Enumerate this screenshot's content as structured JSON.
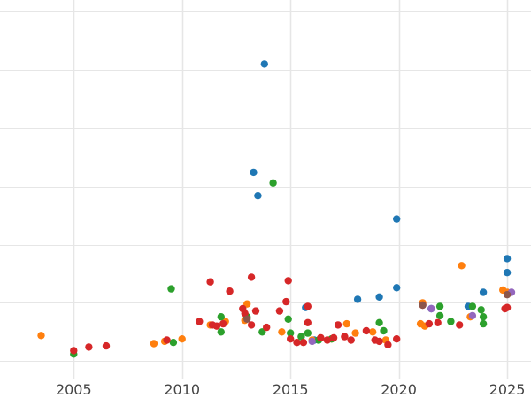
{
  "chart_data": {
    "type": "scatter",
    "title": "",
    "xlabel": "",
    "ylabel": "",
    "xlim": [
      2001.6,
      2026.1
    ],
    "ylim": [
      -1.5,
      31
    ],
    "x_ticks": [
      2005,
      2010,
      2015,
      2020,
      2025
    ],
    "x_tick_labels": [
      "2005",
      "2010",
      "2015",
      "2020",
      "2025"
    ],
    "y_grid": [
      0,
      5,
      10,
      15,
      20,
      25,
      30
    ],
    "grid": true,
    "legend": "none",
    "colors": {
      "blue": "#1f77b4",
      "orange": "#ff7f0e",
      "green": "#2ca02c",
      "red": "#d62728",
      "purple": "#9467bd",
      "brown": "#8c564b"
    },
    "series": [
      {
        "color": "#1f77b4",
        "points": [
          [
            2013.8,
            25.5
          ],
          [
            2013.3,
            16.2
          ],
          [
            2013.5,
            14.2
          ],
          [
            2019.9,
            12.2
          ],
          [
            2025.0,
            8.8
          ],
          [
            2025.0,
            7.6
          ],
          [
            2019.9,
            6.3
          ],
          [
            2023.9,
            5.9
          ],
          [
            2018.1,
            5.3
          ],
          [
            2019.1,
            5.5
          ],
          [
            2023.2,
            4.7
          ],
          [
            2015.7,
            4.6
          ],
          [
            2016.1,
            1.8
          ],
          [
            2021.5,
            4.5
          ]
        ]
      },
      {
        "color": "#ff7f0e",
        "points": [
          [
            2003.5,
            2.2
          ],
          [
            2008.7,
            1.5
          ],
          [
            2009.2,
            1.7
          ],
          [
            2010.0,
            1.9
          ],
          [
            2011.3,
            3.1
          ],
          [
            2012.0,
            3.4
          ],
          [
            2013.0,
            4.9
          ],
          [
            2012.9,
            3.5
          ],
          [
            2014.6,
            2.5
          ],
          [
            2016.0,
            1.8
          ],
          [
            2016.9,
            1.9
          ],
          [
            2017.6,
            3.2
          ],
          [
            2018.0,
            2.4
          ],
          [
            2018.8,
            2.5
          ],
          [
            2019.4,
            1.8
          ],
          [
            2021.0,
            3.2
          ],
          [
            2021.2,
            3.0
          ],
          [
            2021.1,
            5.0
          ],
          [
            2022.9,
            8.2
          ],
          [
            2023.3,
            3.8
          ],
          [
            2024.8,
            6.1
          ],
          [
            2025.0,
            5.9
          ]
        ]
      },
      {
        "color": "#2ca02c",
        "points": [
          [
            2005.0,
            0.6
          ],
          [
            2009.5,
            6.2
          ],
          [
            2009.6,
            1.6
          ],
          [
            2011.8,
            3.8
          ],
          [
            2011.8,
            2.5
          ],
          [
            2013.0,
            3.8
          ],
          [
            2013.7,
            2.5
          ],
          [
            2014.2,
            15.3
          ],
          [
            2014.9,
            3.6
          ],
          [
            2015.0,
            2.4
          ],
          [
            2015.5,
            2.1
          ],
          [
            2015.8,
            2.4
          ],
          [
            2016.3,
            1.8
          ],
          [
            2016.9,
            1.9
          ],
          [
            2019.1,
            3.3
          ],
          [
            2019.3,
            2.6
          ],
          [
            2021.9,
            4.7
          ],
          [
            2021.9,
            3.9
          ],
          [
            2022.4,
            3.4
          ],
          [
            2023.4,
            4.7
          ],
          [
            2023.8,
            4.4
          ],
          [
            2023.9,
            3.2
          ],
          [
            2023.9,
            3.8
          ]
        ]
      },
      {
        "color": "#d62728",
        "points": [
          [
            2005.0,
            0.9
          ],
          [
            2005.7,
            1.2
          ],
          [
            2006.5,
            1.3
          ],
          [
            2009.3,
            1.8
          ],
          [
            2010.8,
            3.4
          ],
          [
            2011.3,
            6.8
          ],
          [
            2011.4,
            3.1
          ],
          [
            2011.6,
            3.0
          ],
          [
            2011.9,
            3.2
          ],
          [
            2012.2,
            6.0
          ],
          [
            2012.8,
            4.5
          ],
          [
            2012.9,
            4.1
          ],
          [
            2013.2,
            7.2
          ],
          [
            2013.4,
            4.3
          ],
          [
            2013.2,
            3.1
          ],
          [
            2013.9,
            2.9
          ],
          [
            2014.5,
            4.3
          ],
          [
            2014.8,
            5.1
          ],
          [
            2014.9,
            6.9
          ],
          [
            2015.0,
            1.9
          ],
          [
            2015.3,
            1.6
          ],
          [
            2015.6,
            1.6
          ],
          [
            2015.8,
            4.7
          ],
          [
            2015.8,
            3.3
          ],
          [
            2016.4,
            2.0
          ],
          [
            2016.7,
            1.8
          ],
          [
            2017.0,
            2.0
          ],
          [
            2017.2,
            3.1
          ],
          [
            2017.5,
            2.1
          ],
          [
            2017.8,
            1.8
          ],
          [
            2018.5,
            2.6
          ],
          [
            2018.9,
            1.8
          ],
          [
            2019.1,
            1.7
          ],
          [
            2019.5,
            1.4
          ],
          [
            2019.9,
            1.9
          ],
          [
            2021.1,
            4.8
          ],
          [
            2021.4,
            3.2
          ],
          [
            2021.8,
            3.3
          ],
          [
            2022.8,
            3.1
          ],
          [
            2024.9,
            4.5
          ],
          [
            2025.0,
            4.6
          ]
        ]
      },
      {
        "color": "#9467bd",
        "points": [
          [
            2016.0,
            1.7
          ],
          [
            2021.5,
            4.5
          ],
          [
            2023.4,
            3.9
          ],
          [
            2025.2,
            5.9
          ]
        ]
      },
      {
        "color": "#8c564b",
        "points": [
          [
            2021.1,
            4.8
          ],
          [
            2025.0,
            5.7
          ],
          [
            2013.0,
            3.6
          ]
        ]
      }
    ]
  }
}
